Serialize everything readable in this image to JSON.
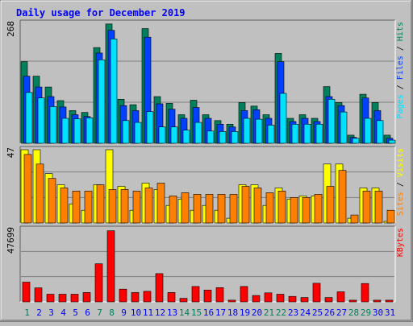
{
  "title": "Daily usage for December 2019",
  "colors": {
    "background": "#c0c0c0",
    "title": "#0000ff",
    "hits": "#00805c",
    "files": "#0040ff",
    "pages": "#00e0ff",
    "visits": "#ffff00",
    "sites": "#ff8000",
    "kbytes": "#ff0000",
    "weekend_label": "#00805c",
    "weekday_label": "#0000ff"
  },
  "chart_data": [
    {
      "type": "bar",
      "panel": "hits-files-pages",
      "right_label": [
        "Pages",
        "Files",
        "Hits"
      ],
      "ymax_label": "268",
      "ylim": [
        0,
        268
      ],
      "categories": [
        "1",
        "2",
        "3",
        "4",
        "5",
        "6",
        "7",
        "8",
        "9",
        "10",
        "11",
        "12",
        "13",
        "14",
        "15",
        "16",
        "17",
        "18",
        "19",
        "20",
        "21",
        "22",
        "23",
        "24",
        "25",
        "26",
        "27",
        "28",
        "29",
        "30",
        "31"
      ],
      "series": [
        {
          "name": "Hits",
          "values": [
            180,
            148,
            124,
            94,
            72,
            68,
            211,
            263,
            97,
            85,
            253,
            103,
            88,
            63,
            95,
            63,
            50,
            42,
            90,
            82,
            63,
            198,
            55,
            63,
            55,
            125,
            90,
            18,
            108,
            90,
            18
          ]
        },
        {
          "name": "Files",
          "values": [
            148,
            124,
            103,
            80,
            63,
            59,
            199,
            249,
            83,
            72,
            234,
            87,
            75,
            55,
            79,
            55,
            42,
            36,
            72,
            74,
            55,
            180,
            48,
            55,
            48,
            103,
            83,
            13,
            100,
            72,
            11
          ]
        },
        {
          "name": "Pages",
          "values": [
            112,
            100,
            81,
            55,
            54,
            56,
            184,
            230,
            50,
            46,
            70,
            36,
            36,
            29,
            46,
            27,
            26,
            26,
            55,
            53,
            40,
            110,
            42,
            42,
            42,
            97,
            69,
            11,
            55,
            50,
            7
          ]
        }
      ]
    },
    {
      "type": "bar",
      "panel": "visits-sites",
      "right_label": [
        "Sites",
        "Visits"
      ],
      "ymax_label": "47",
      "ylim": [
        0,
        47
      ],
      "categories": [
        "1",
        "2",
        "3",
        "4",
        "5",
        "6",
        "7",
        "8",
        "9",
        "10",
        "11",
        "12",
        "13",
        "14",
        "15",
        "16",
        "17",
        "18",
        "19",
        "20",
        "21",
        "22",
        "23",
        "24",
        "25",
        "26",
        "27",
        "28",
        "29",
        "30",
        "31"
      ],
      "series": [
        {
          "name": "Visits",
          "values": [
            46,
            46,
            31,
            24,
            12,
            8,
            24,
            46,
            23,
            8,
            25,
            21,
            11,
            15,
            8,
            11,
            8,
            3,
            24,
            24,
            11,
            22,
            15,
            17,
            17,
            37,
            37,
            3,
            22,
            22,
            1
          ]
        },
        {
          "name": "Sites",
          "values": [
            43,
            37,
            28,
            22,
            20,
            20,
            24,
            21,
            21,
            20,
            22,
            25,
            17,
            19,
            18,
            18,
            18,
            18,
            23,
            22,
            19,
            20,
            16,
            16,
            18,
            23,
            33,
            5,
            20,
            20,
            8
          ]
        }
      ]
    },
    {
      "type": "bar",
      "panel": "kbytes",
      "right_label": [
        "KBytes"
      ],
      "ymax_label": "47699",
      "ylim": [
        0,
        47699
      ],
      "categories": [
        "1",
        "2",
        "3",
        "4",
        "5",
        "6",
        "7",
        "8",
        "9",
        "10",
        "11",
        "12",
        "13",
        "14",
        "15",
        "16",
        "17",
        "18",
        "19",
        "20",
        "21",
        "22",
        "23",
        "24",
        "25",
        "26",
        "27",
        "28",
        "29",
        "30",
        "31"
      ],
      "series": [
        {
          "name": "KBytes",
          "values": [
            12700,
            9000,
            4900,
            4900,
            4900,
            6000,
            24500,
            45800,
            8200,
            6000,
            6800,
            18200,
            6000,
            2300,
            9900,
            7600,
            9200,
            1100,
            9900,
            4100,
            5800,
            4900,
            3500,
            2800,
            12000,
            2800,
            6500,
            1100,
            11800,
            1100,
            1100
          ]
        }
      ]
    }
  ]
}
